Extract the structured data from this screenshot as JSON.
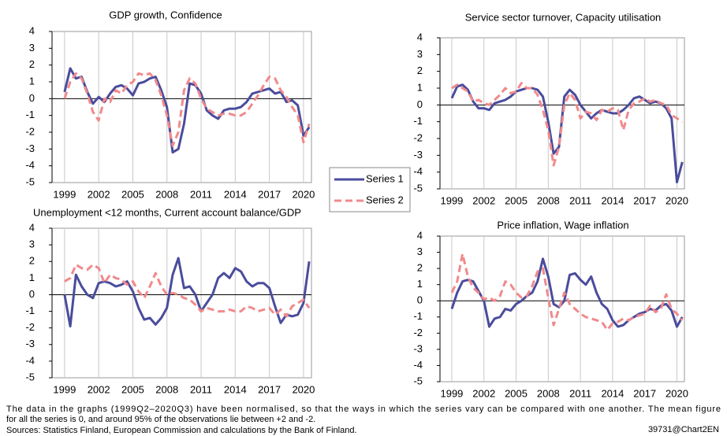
{
  "chart_data": [
    {
      "type": "line",
      "title": "GDP growth, Confidence",
      "x": [
        1999,
        1999.5,
        2000,
        2000.5,
        2001,
        2001.5,
        2002,
        2002.5,
        2003,
        2003.5,
        2004,
        2004.5,
        2005,
        2005.5,
        2006,
        2006.5,
        2007,
        2007.5,
        2008,
        2008.5,
        2009,
        2009.5,
        2010,
        2010.5,
        2011,
        2011.5,
        2012,
        2012.5,
        2013,
        2013.5,
        2014,
        2014.5,
        2015,
        2015.5,
        2016,
        2016.5,
        2017,
        2017.5,
        2018,
        2018.5,
        2019,
        2019.5,
        2020,
        2020.5
      ],
      "series": [
        {
          "name": "Series 1",
          "color": "#4a4c9c",
          "line_style": "solid",
          "values": [
            0.4,
            1.8,
            1.2,
            1.3,
            0.4,
            -0.3,
            0.1,
            -0.2,
            0.3,
            0.7,
            0.8,
            0.6,
            0.2,
            0.9,
            1.0,
            1.2,
            1.3,
            0.5,
            -0.5,
            -3.2,
            -3.0,
            -1.5,
            0.9,
            0.8,
            0.3,
            -0.7,
            -1.0,
            -1.2,
            -0.7,
            -0.6,
            -0.6,
            -0.5,
            -0.2,
            0.3,
            0.4,
            0.5,
            0.6,
            0.3,
            0.4,
            -0.2,
            -0.1,
            -0.4,
            -2.2,
            -1.7
          ]
        },
        {
          "name": "Series 2",
          "color": "#f08a8c",
          "line_style": "dashed",
          "values": [
            0.0,
            1.0,
            1.5,
            1.2,
            0.3,
            -0.8,
            -1.3,
            0.0,
            -0.2,
            0.5,
            0.3,
            0.8,
            1.0,
            1.5,
            1.4,
            1.5,
            1.1,
            0.2,
            -1.0,
            -2.8,
            -2.0,
            0.5,
            1.2,
            0.9,
            0.0,
            -0.6,
            -0.8,
            -1.0,
            -0.9,
            -0.9,
            -1.0,
            -1.0,
            -0.8,
            -0.3,
            0.2,
            0.8,
            1.3,
            1.2,
            0.5,
            0.1,
            -0.5,
            -1.0,
            -2.6,
            -1.5
          ]
        }
      ],
      "xlim": [
        1997.9,
        2020.7
      ],
      "xticks": [
        1999,
        2002,
        2005,
        2008,
        2011,
        2014,
        2017,
        2020
      ],
      "ylim": [
        -5,
        4
      ],
      "yticks": [
        -5,
        -4,
        -3,
        -2,
        -1,
        0,
        1,
        2,
        3,
        4
      ],
      "grid": true
    },
    {
      "type": "line",
      "title": "Service sector turnover, Capacity utilisation",
      "x": [
        1999,
        1999.5,
        2000,
        2000.5,
        2001,
        2001.5,
        2002,
        2002.5,
        2003,
        2003.5,
        2004,
        2004.5,
        2005,
        2005.5,
        2006,
        2006.5,
        2007,
        2007.5,
        2008,
        2008.5,
        2009,
        2009.5,
        2010,
        2010.5,
        2011,
        2011.5,
        2012,
        2012.5,
        2013,
        2013.5,
        2014,
        2014.5,
        2015,
        2015.5,
        2016,
        2016.5,
        2017,
        2017.5,
        2018,
        2018.5,
        2019,
        2019.5,
        2020,
        2020.5
      ],
      "series": [
        {
          "color": "#4a4c9c",
          "line_style": "solid",
          "values": [
            0.4,
            1.1,
            1.2,
            0.9,
            0.2,
            -0.2,
            -0.2,
            -0.3,
            0.1,
            0.2,
            0.3,
            0.5,
            0.8,
            0.9,
            1.0,
            1.0,
            0.9,
            0.5,
            -1.0,
            -2.9,
            -2.5,
            0.5,
            0.9,
            0.6,
            0.0,
            -0.4,
            -0.8,
            -0.5,
            -0.3,
            -0.4,
            -0.5,
            -0.5,
            -0.3,
            0.0,
            0.4,
            0.5,
            0.3,
            0.1,
            0.2,
            0.1,
            -0.2,
            -0.8,
            -4.6,
            -3.4
          ]
        },
        {
          "color": "#f08a8c",
          "line_style": "dashed",
          "values": [
            1.0,
            1.2,
            1.0,
            0.8,
            0.2,
            0.3,
            0.1,
            0.0,
            0.3,
            0.6,
            1.0,
            0.7,
            0.8,
            1.3,
            1.0,
            1.0,
            0.6,
            -0.3,
            -1.5,
            -3.6,
            -2.5,
            0.0,
            0.7,
            0.3,
            -0.8,
            -0.4,
            -0.5,
            -0.9,
            -0.3,
            -0.4,
            -0.2,
            -0.3,
            -1.5,
            -0.3,
            0.1,
            0.2,
            0.4,
            0.2,
            0.3,
            0.1,
            0.0,
            -0.6,
            -0.8,
            -1.0
          ]
        }
      ],
      "xlim": [
        1997.9,
        2020.7
      ],
      "xticks": [
        1999,
        2002,
        2005,
        2008,
        2011,
        2014,
        2017,
        2020
      ],
      "ylim": [
        -5,
        4
      ],
      "yticks": [
        -5,
        -4,
        -3,
        -2,
        -1,
        0,
        1,
        2,
        3,
        4
      ],
      "grid": true
    },
    {
      "type": "line",
      "title": "Unemployment <12 months, Current account balance/GDP",
      "x": [
        1999,
        1999.5,
        2000,
        2000.5,
        2001,
        2001.5,
        2002,
        2002.5,
        2003,
        2003.5,
        2004,
        2004.5,
        2005,
        2005.5,
        2006,
        2006.5,
        2007,
        2007.5,
        2008,
        2008.5,
        2009,
        2009.5,
        2010,
        2010.5,
        2011,
        2011.5,
        2012,
        2012.5,
        2013,
        2013.5,
        2014,
        2014.5,
        2015,
        2015.5,
        2016,
        2016.5,
        2017,
        2017.5,
        2018,
        2018.5,
        2019,
        2019.5,
        2020,
        2020.5
      ],
      "series": [
        {
          "color": "#4a4c9c",
          "line_style": "solid",
          "values": [
            0.0,
            -1.9,
            1.2,
            0.5,
            0.0,
            -0.2,
            0.7,
            0.8,
            0.7,
            0.5,
            0.6,
            0.8,
            0.2,
            -0.8,
            -1.5,
            -1.4,
            -1.8,
            -1.4,
            -0.8,
            1.2,
            2.2,
            0.4,
            0.5,
            0.0,
            -1.0,
            -0.5,
            0.0,
            1.0,
            1.3,
            1.0,
            1.6,
            1.4,
            0.8,
            0.5,
            0.7,
            0.7,
            0.4,
            -0.7,
            -1.7,
            -1.2,
            -1.3,
            -1.2,
            -0.5,
            2.0
          ]
        },
        {
          "color": "#f08a8c",
          "line_style": "dashed",
          "values": [
            0.8,
            1.0,
            1.8,
            1.6,
            1.5,
            1.8,
            1.6,
            0.7,
            1.2,
            1.0,
            0.9,
            0.6,
            0.8,
            0.2,
            -0.2,
            0.5,
            1.3,
            0.5,
            0.0,
            0.1,
            0.0,
            -0.2,
            -0.3,
            -0.6,
            -1.0,
            -0.8,
            -0.9,
            -1.0,
            -1.0,
            -0.9,
            -1.0,
            -1.0,
            -0.7,
            -0.8,
            -1.0,
            -0.9,
            -0.8,
            -1.2,
            -0.9,
            -1.3,
            -0.7,
            -0.5,
            -0.3,
            -0.8
          ]
        }
      ],
      "xlim": [
        1997.9,
        2020.7
      ],
      "xticks": [
        1999,
        2002,
        2005,
        2008,
        2011,
        2014,
        2017,
        2020
      ],
      "ylim": [
        -5,
        4
      ],
      "yticks": [
        -5,
        -4,
        -3,
        -2,
        -1,
        0,
        1,
        2,
        3,
        4
      ],
      "grid": true
    },
    {
      "type": "line",
      "title": "Price inflation, Wage inflation",
      "x": [
        1999,
        1999.5,
        2000,
        2000.5,
        2001,
        2001.5,
        2002,
        2002.5,
        2003,
        2003.5,
        2004,
        2004.5,
        2005,
        2005.5,
        2006,
        2006.5,
        2007,
        2007.5,
        2008,
        2008.5,
        2009,
        2009.5,
        2010,
        2010.5,
        2011,
        2011.5,
        2012,
        2012.5,
        2013,
        2013.5,
        2014,
        2014.5,
        2015,
        2015.5,
        2016,
        2016.5,
        2017,
        2017.5,
        2018,
        2018.5,
        2019,
        2019.5,
        2020,
        2020.5
      ],
      "series": [
        {
          "color": "#4a4c9c",
          "line_style": "solid",
          "values": [
            -0.5,
            0.5,
            1.2,
            1.3,
            1.2,
            0.6,
            0.0,
            -1.6,
            -1.1,
            -1.0,
            -0.5,
            -0.6,
            -0.2,
            0.0,
            0.3,
            0.5,
            1.2,
            2.6,
            1.5,
            -0.2,
            -0.4,
            0.0,
            1.6,
            1.7,
            1.3,
            1.0,
            1.5,
            0.5,
            -0.2,
            -0.5,
            -1.2,
            -1.6,
            -1.5,
            -1.2,
            -1.0,
            -0.8,
            -0.7,
            -0.5,
            -0.6,
            -0.3,
            -0.2,
            -0.6,
            -1.6,
            -1.0
          ]
        },
        {
          "color": "#f08a8c",
          "line_style": "dashed",
          "values": [
            0.5,
            1.2,
            2.9,
            1.5,
            0.8,
            0.5,
            0.1,
            0.2,
            0.0,
            0.3,
            1.2,
            1.0,
            0.5,
            0.2,
            0.3,
            0.9,
            1.8,
            2.0,
            0.2,
            -1.5,
            -0.5,
            0.5,
            -0.2,
            -0.5,
            -0.8,
            -1.0,
            -1.1,
            -1.2,
            -1.3,
            -1.8,
            -1.4,
            -1.3,
            -1.1,
            -1.2,
            -1.0,
            -0.9,
            -0.8,
            -0.3,
            -0.7,
            -0.5,
            0.4,
            -0.5,
            -0.8,
            -1.2
          ]
        }
      ],
      "xlim": [
        1997.9,
        2020.7
      ],
      "xticks": [
        1999,
        2002,
        2005,
        2008,
        2011,
        2014,
        2017,
        2020
      ],
      "ylim": [
        -5,
        4
      ],
      "yticks": [
        -5,
        -4,
        -3,
        -2,
        -1,
        0,
        1,
        2,
        3,
        4
      ],
      "grid": true
    }
  ],
  "notes": [
    "The data in the graphs (1999Q2–2020Q3) have been normalised, so that the ways in which the series vary can be compared with one another. The mean figure",
    "for all the series is 0, and around 95% of the observations lie between +2 and -2.",
    "Sources: Statistics Finland, European Commission and calculations by the Bank of Finland."
  ],
  "code": "39731@Chart2EN"
}
